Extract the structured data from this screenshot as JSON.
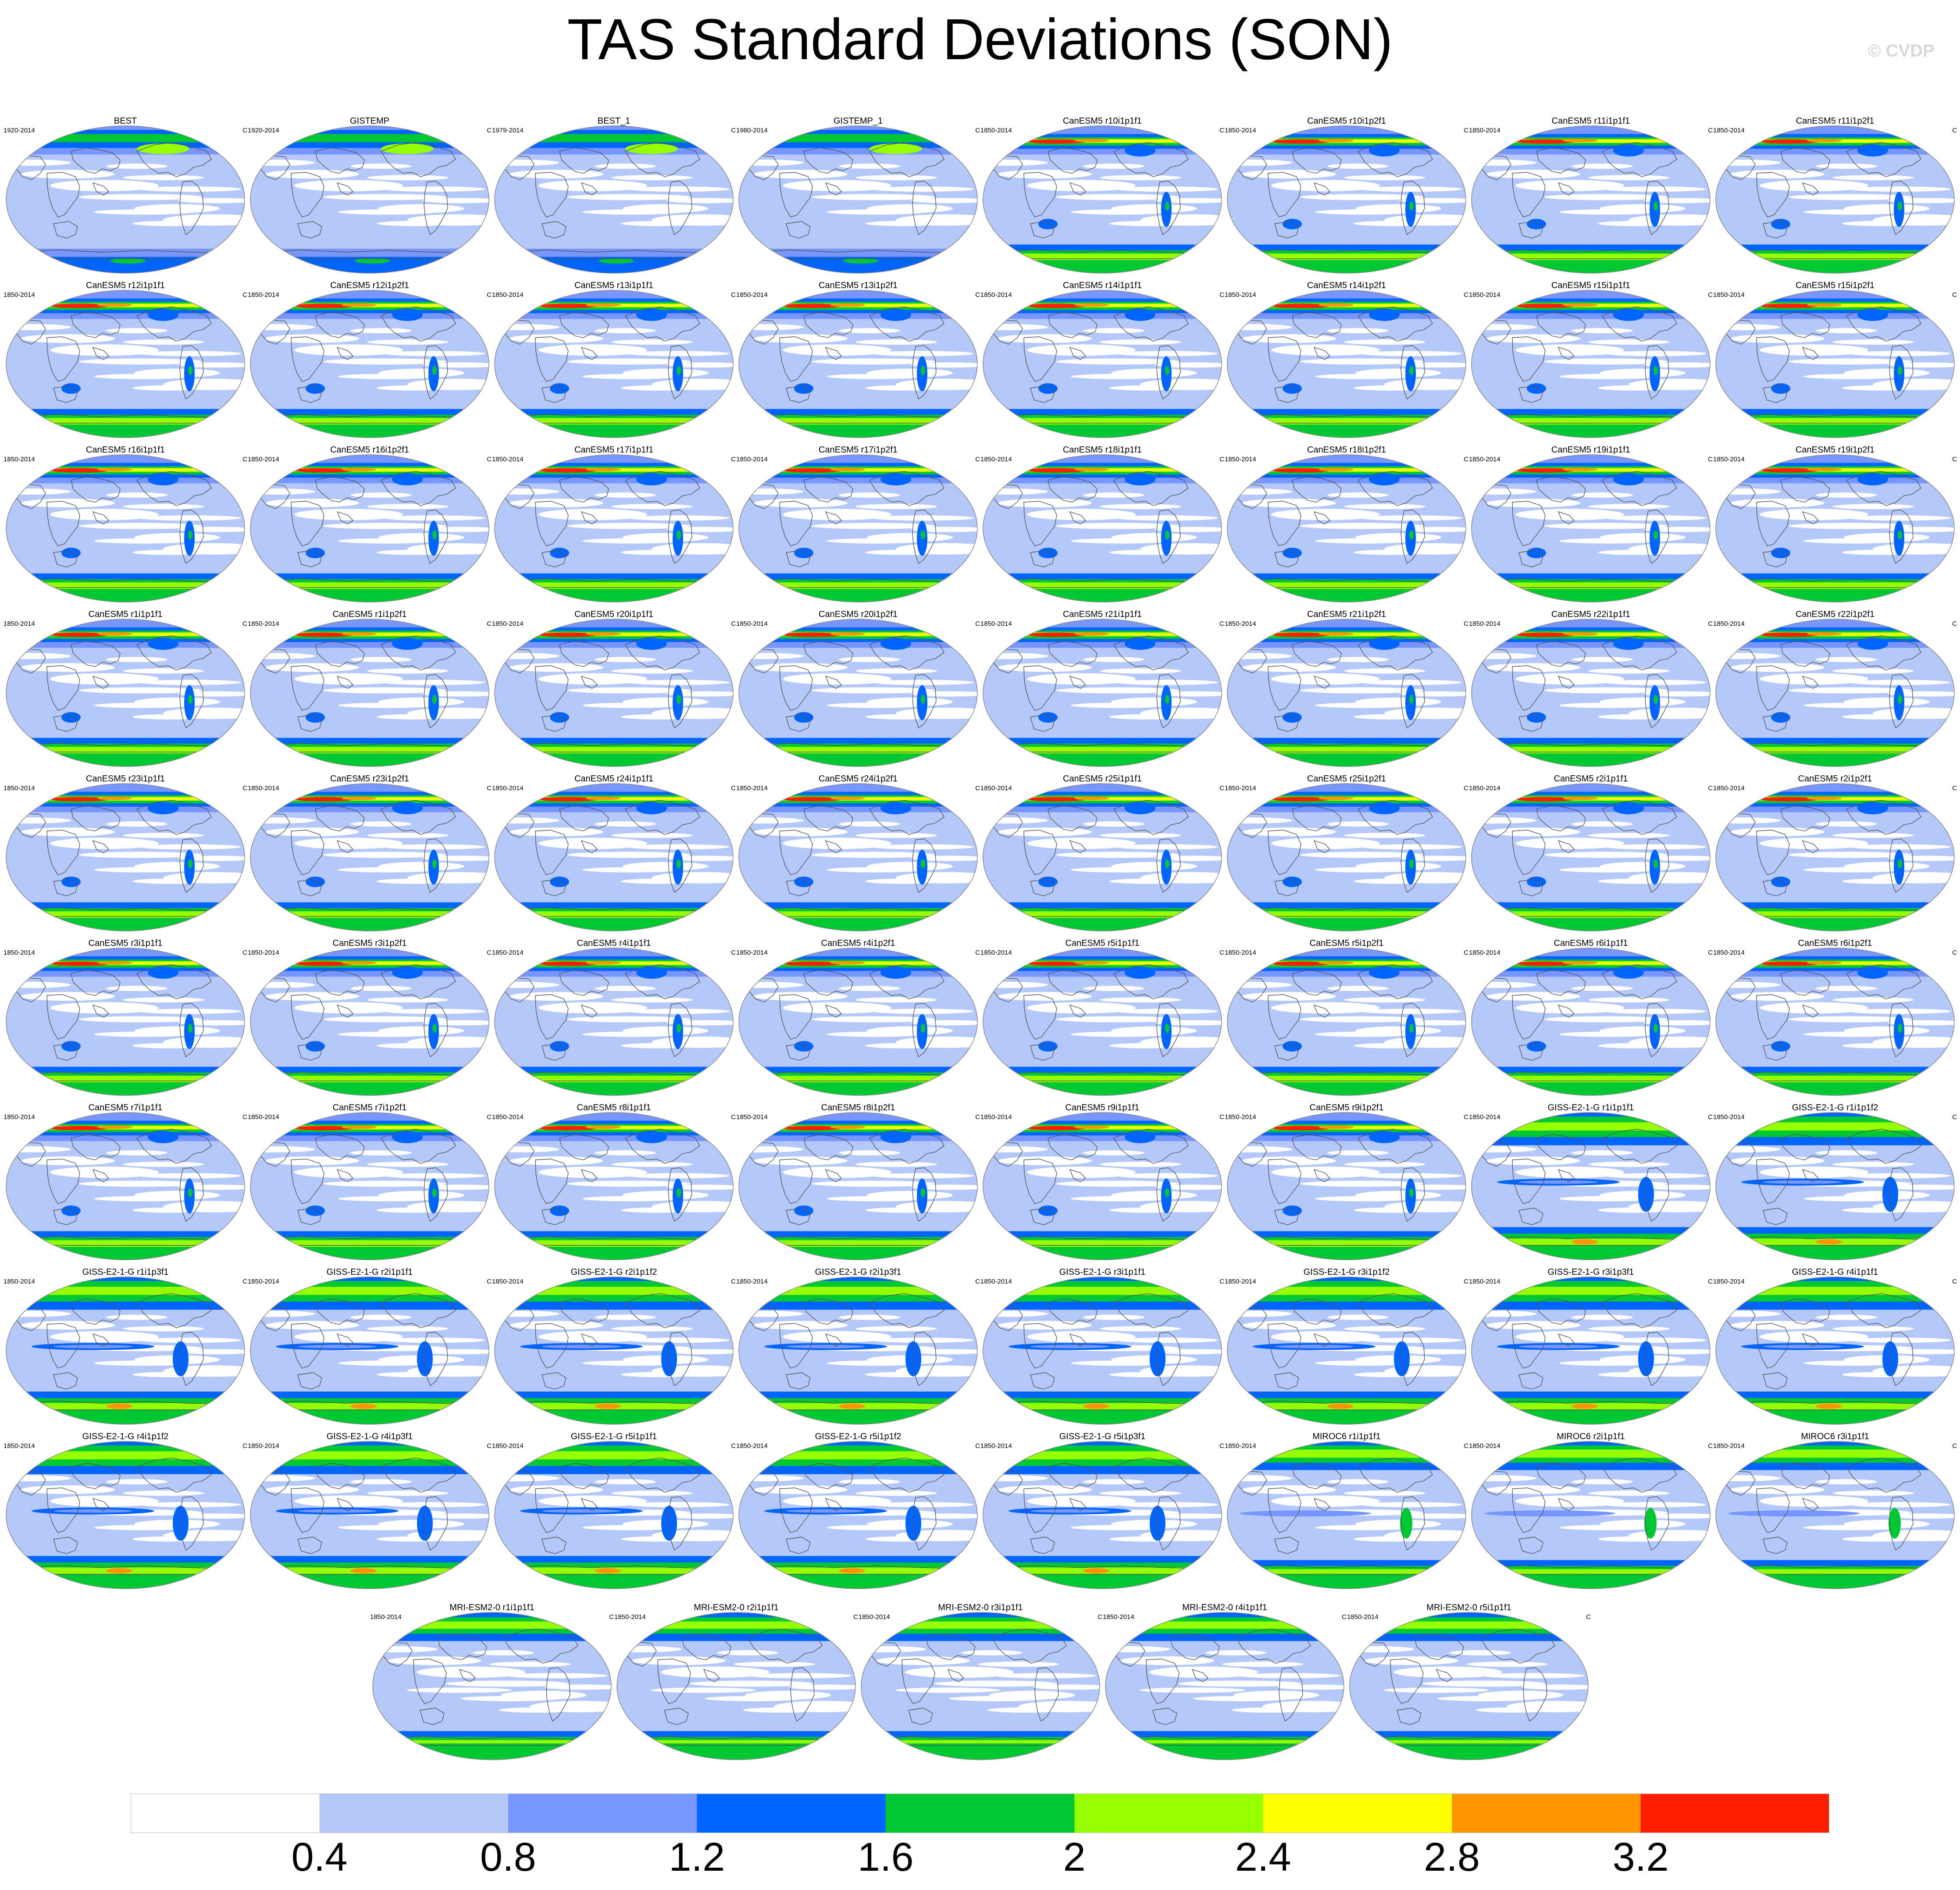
{
  "title": "TAS Standard Deviations (SON)",
  "watermark": "© CVDP",
  "units_label": "C",
  "panels": [
    {
      "name": "BEST",
      "years": "1920-2014",
      "kind": "obs"
    },
    {
      "name": "GISTEMP",
      "years": "1920-2014",
      "kind": "obs"
    },
    {
      "name": "BEST_1",
      "years": "1979-2014",
      "kind": "obs"
    },
    {
      "name": "GISTEMP_1",
      "years": "1980-2014",
      "kind": "obs"
    },
    {
      "name": "CanESM5 r10i1p1f1",
      "years": "1850-2014",
      "kind": "canesm"
    },
    {
      "name": "CanESM5 r10i1p2f1",
      "years": "1850-2014",
      "kind": "canesm"
    },
    {
      "name": "CanESM5 r11i1p1f1",
      "years": "1850-2014",
      "kind": "canesm"
    },
    {
      "name": "CanESM5 r11i1p2f1",
      "years": "1850-2014",
      "kind": "canesm"
    },
    {
      "name": "CanESM5 r12i1p1f1",
      "years": "1850-2014",
      "kind": "canesm"
    },
    {
      "name": "CanESM5 r12i1p2f1",
      "years": "1850-2014",
      "kind": "canesm"
    },
    {
      "name": "CanESM5 r13i1p1f1",
      "years": "1850-2014",
      "kind": "canesm"
    },
    {
      "name": "CanESM5 r13i1p2f1",
      "years": "1850-2014",
      "kind": "canesm"
    },
    {
      "name": "CanESM5 r14i1p1f1",
      "years": "1850-2014",
      "kind": "canesm"
    },
    {
      "name": "CanESM5 r14i1p2f1",
      "years": "1850-2014",
      "kind": "canesm"
    },
    {
      "name": "CanESM5 r15i1p1f1",
      "years": "1850-2014",
      "kind": "canesm"
    },
    {
      "name": "CanESM5 r15i1p2f1",
      "years": "1850-2014",
      "kind": "canesm"
    },
    {
      "name": "CanESM5 r16i1p1f1",
      "years": "1850-2014",
      "kind": "canesm"
    },
    {
      "name": "CanESM5 r16i1p2f1",
      "years": "1850-2014",
      "kind": "canesm"
    },
    {
      "name": "CanESM5 r17i1p1f1",
      "years": "1850-2014",
      "kind": "canesm"
    },
    {
      "name": "CanESM5 r17i1p2f1",
      "years": "1850-2014",
      "kind": "canesm"
    },
    {
      "name": "CanESM5 r18i1p1f1",
      "years": "1850-2014",
      "kind": "canesm"
    },
    {
      "name": "CanESM5 r18i1p2f1",
      "years": "1850-2014",
      "kind": "canesm"
    },
    {
      "name": "CanESM5 r19i1p1f1",
      "years": "1850-2014",
      "kind": "canesm"
    },
    {
      "name": "CanESM5 r19i1p2f1",
      "years": "1850-2014",
      "kind": "canesm"
    },
    {
      "name": "CanESM5 r1i1p1f1",
      "years": "1850-2014",
      "kind": "canesm"
    },
    {
      "name": "CanESM5 r1i1p2f1",
      "years": "1850-2014",
      "kind": "canesm"
    },
    {
      "name": "CanESM5 r20i1p1f1",
      "years": "1850-2014",
      "kind": "canesm"
    },
    {
      "name": "CanESM5 r20i1p2f1",
      "years": "1850-2014",
      "kind": "canesm"
    },
    {
      "name": "CanESM5 r21i1p1f1",
      "years": "1850-2014",
      "kind": "canesm"
    },
    {
      "name": "CanESM5 r21i1p2f1",
      "years": "1850-2014",
      "kind": "canesm"
    },
    {
      "name": "CanESM5 r22i1p1f1",
      "years": "1850-2014",
      "kind": "canesm"
    },
    {
      "name": "CanESM5 r22i1p2f1",
      "years": "1850-2014",
      "kind": "canesm"
    },
    {
      "name": "CanESM5 r23i1p1f1",
      "years": "1850-2014",
      "kind": "canesm"
    },
    {
      "name": "CanESM5 r23i1p2f1",
      "years": "1850-2014",
      "kind": "canesm"
    },
    {
      "name": "CanESM5 r24i1p1f1",
      "years": "1850-2014",
      "kind": "canesm"
    },
    {
      "name": "CanESM5 r24i1p2f1",
      "years": "1850-2014",
      "kind": "canesm"
    },
    {
      "name": "CanESM5 r25i1p1f1",
      "years": "1850-2014",
      "kind": "canesm"
    },
    {
      "name": "CanESM5 r25i1p2f1",
      "years": "1850-2014",
      "kind": "canesm"
    },
    {
      "name": "CanESM5 r2i1p1f1",
      "years": "1850-2014",
      "kind": "canesm"
    },
    {
      "name": "CanESM5 r2i1p2f1",
      "years": "1850-2014",
      "kind": "canesm"
    },
    {
      "name": "CanESM5 r3i1p1f1",
      "years": "1850-2014",
      "kind": "canesm"
    },
    {
      "name": "CanESM5 r3i1p2f1",
      "years": "1850-2014",
      "kind": "canesm"
    },
    {
      "name": "CanESM5 r4i1p1f1",
      "years": "1850-2014",
      "kind": "canesm"
    },
    {
      "name": "CanESM5 r4i1p2f1",
      "years": "1850-2014",
      "kind": "canesm"
    },
    {
      "name": "CanESM5 r5i1p1f1",
      "years": "1850-2014",
      "kind": "canesm"
    },
    {
      "name": "CanESM5 r5i1p2f1",
      "years": "1850-2014",
      "kind": "canesm"
    },
    {
      "name": "CanESM5 r6i1p1f1",
      "years": "1850-2014",
      "kind": "canesm"
    },
    {
      "name": "CanESM5 r6i1p2f1",
      "years": "1850-2014",
      "kind": "canesm"
    },
    {
      "name": "CanESM5 r7i1p1f1",
      "years": "1850-2014",
      "kind": "canesm"
    },
    {
      "name": "CanESM5 r7i1p2f1",
      "years": "1850-2014",
      "kind": "canesm"
    },
    {
      "name": "CanESM5 r8i1p1f1",
      "years": "1850-2014",
      "kind": "canesm"
    },
    {
      "name": "CanESM5 r8i1p2f1",
      "years": "1850-2014",
      "kind": "canesm"
    },
    {
      "name": "CanESM5 r9i1p1f1",
      "years": "1850-2014",
      "kind": "canesm"
    },
    {
      "name": "CanESM5 r9i1p2f1",
      "years": "1850-2014",
      "kind": "canesm"
    },
    {
      "name": "GISS-E2-1-G r1i1p1f1",
      "years": "1850-2014",
      "kind": "giss"
    },
    {
      "name": "GISS-E2-1-G r1i1p1f2",
      "years": "1850-2014",
      "kind": "giss"
    },
    {
      "name": "GISS-E2-1-G r1i1p3f1",
      "years": "1850-2014",
      "kind": "giss"
    },
    {
      "name": "GISS-E2-1-G r2i1p1f1",
      "years": "1850-2014",
      "kind": "giss"
    },
    {
      "name": "GISS-E2-1-G r2i1p1f2",
      "years": "1850-2014",
      "kind": "giss"
    },
    {
      "name": "GISS-E2-1-G r2i1p3f1",
      "years": "1850-2014",
      "kind": "giss"
    },
    {
      "name": "GISS-E2-1-G r3i1p1f1",
      "years": "1850-2014",
      "kind": "giss"
    },
    {
      "name": "GISS-E2-1-G r3i1p1f2",
      "years": "1850-2014",
      "kind": "giss"
    },
    {
      "name": "GISS-E2-1-G r3i1p3f1",
      "years": "1850-2014",
      "kind": "giss"
    },
    {
      "name": "GISS-E2-1-G r4i1p1f1",
      "years": "1850-2014",
      "kind": "giss"
    },
    {
      "name": "GISS-E2-1-G r4i1p1f2",
      "years": "1850-2014",
      "kind": "giss"
    },
    {
      "name": "GISS-E2-1-G r4i1p3f1",
      "years": "1850-2014",
      "kind": "giss"
    },
    {
      "name": "GISS-E2-1-G r5i1p1f1",
      "years": "1850-2014",
      "kind": "giss"
    },
    {
      "name": "GISS-E2-1-G r5i1p1f2",
      "years": "1850-2014",
      "kind": "giss"
    },
    {
      "name": "GISS-E2-1-G r5i1p3f1",
      "years": "1850-2014",
      "kind": "giss"
    },
    {
      "name": "MIROC6 r1i1p1f1",
      "years": "1850-2014",
      "kind": "miroc"
    },
    {
      "name": "MIROC6 r2i1p1f1",
      "years": "1850-2014",
      "kind": "miroc"
    },
    {
      "name": "MIROC6 r3i1p1f1",
      "years": "1850-2014",
      "kind": "miroc"
    },
    {
      "name": "MRI-ESM2-0 r1i1p1f1",
      "years": "1850-2014",
      "kind": "mri"
    },
    {
      "name": "MRI-ESM2-0 r2i1p1f1",
      "years": "1850-2014",
      "kind": "mri"
    },
    {
      "name": "MRI-ESM2-0 r3i1p1f1",
      "years": "1850-2014",
      "kind": "mri"
    },
    {
      "name": "MRI-ESM2-0 r4i1p1f1",
      "years": "1850-2014",
      "kind": "mri"
    },
    {
      "name": "MRI-ESM2-0 r5i1p1f1",
      "years": "1850-2014",
      "kind": "mri"
    }
  ],
  "colorbar": {
    "colors": [
      "#ffffff",
      "#b4c8fa",
      "#7896ff",
      "#0064ff",
      "#00c832",
      "#96ff00",
      "#ffff00",
      "#ff9600",
      "#ff1e00"
    ],
    "labels": [
      "0.4",
      "0.8",
      "1.2",
      "1.6",
      "2",
      "2.4",
      "2.8",
      "3.2"
    ]
  },
  "map_colors": {
    "land_line": "#555555",
    "frame": "#888888"
  }
}
